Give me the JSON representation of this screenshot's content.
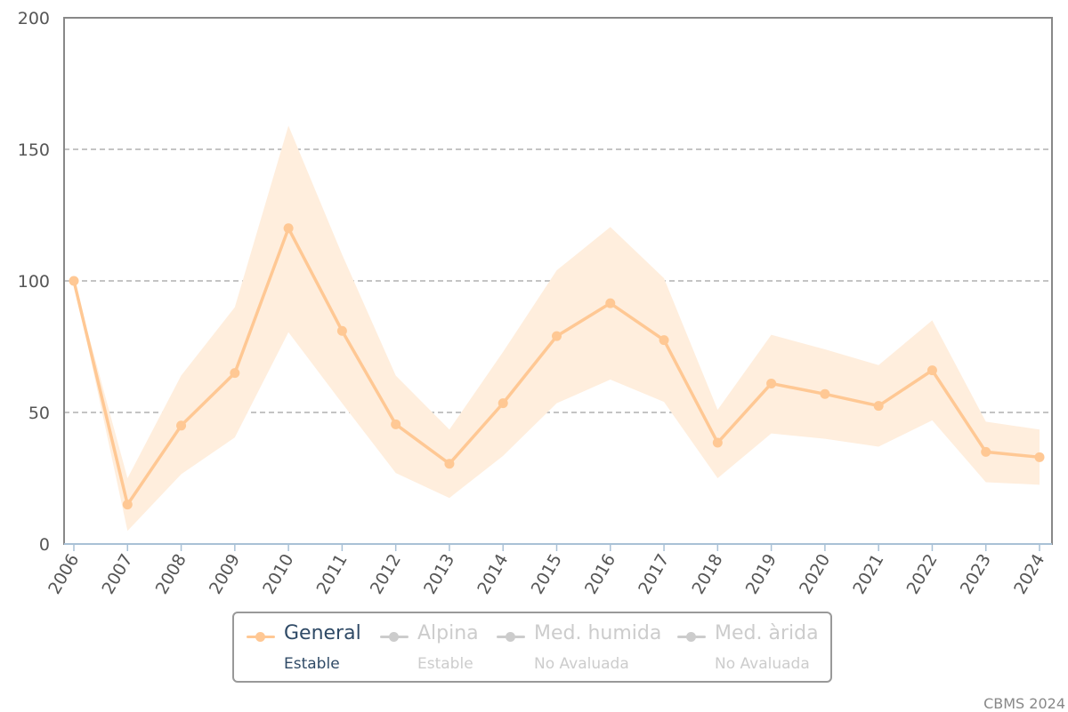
{
  "chart_data": {
    "type": "line",
    "x": [
      "2006",
      "2007",
      "2008",
      "2009",
      "2010",
      "2011",
      "2012",
      "2013",
      "2014",
      "2015",
      "2016",
      "2017",
      "2018",
      "2019",
      "2020",
      "2021",
      "2022",
      "2023",
      "2024"
    ],
    "series": [
      {
        "name": "General",
        "status": "Estable",
        "color": "#ffc894",
        "band_color": "#ffeedd",
        "values": [
          100,
          15,
          45,
          65,
          120,
          81,
          45.5,
          30.5,
          53.5,
          79,
          91.5,
          77.5,
          38.5,
          61,
          57,
          52.5,
          66,
          35,
          33
        ],
        "upper": [
          100,
          25,
          64,
          90,
          159,
          110,
          64,
          43.5,
          73,
          104,
          120.5,
          101,
          51,
          79.5,
          74,
          68,
          85,
          46.5,
          43.5
        ],
        "lower": [
          100,
          5,
          26.5,
          40.5,
          80.5,
          53.5,
          27,
          17.5,
          33.5,
          53.5,
          62.5,
          54,
          25,
          42,
          40,
          37,
          47,
          23.5,
          22.5
        ]
      }
    ],
    "ylim": [
      0,
      200
    ],
    "yticks": [
      0,
      50,
      100,
      150,
      200
    ],
    "grid": true,
    "legend": [
      {
        "name": "General",
        "status": "Estable",
        "active": true,
        "color": "#ffc894",
        "text_color": "#2f4a66"
      },
      {
        "name": "Alpina",
        "status": "Estable",
        "active": false,
        "color": "#cccccc",
        "text_color": "#cccccc"
      },
      {
        "name": "Med. humida",
        "status": "No Avaluada",
        "active": false,
        "color": "#cccccc",
        "text_color": "#cccccc"
      },
      {
        "name": "Med. àrida",
        "status": "No Avaluada",
        "active": false,
        "color": "#cccccc",
        "text_color": "#cccccc"
      }
    ],
    "legend_placement": "bottom-center",
    "credit": "CBMS 2024"
  }
}
